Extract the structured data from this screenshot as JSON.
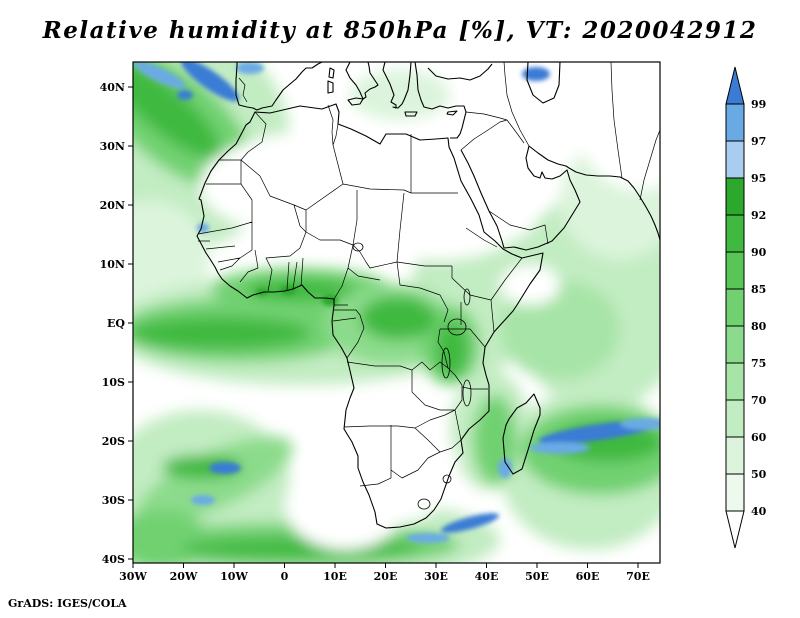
{
  "title": "Relative humidity at 850hPa [%], VT: 2020042912",
  "credit": "GrADS: IGES/COLA",
  "chart_data": {
    "type": "heatmap",
    "title": "Relative humidity at 850hPa [%], VT: 2020042912",
    "variable": "Relative humidity",
    "pressure_level": "850hPa",
    "units": "%",
    "valid_time": "2020042912",
    "region": "Africa and surrounding oceans",
    "lon_range": [
      -30,
      74
    ],
    "lat_range": [
      -41,
      44
    ],
    "x_ticks": [
      {
        "label": "30W",
        "lon": -30
      },
      {
        "label": "20W",
        "lon": -20
      },
      {
        "label": "10W",
        "lon": -10
      },
      {
        "label": "0",
        "lon": 0
      },
      {
        "label": "10E",
        "lon": 10
      },
      {
        "label": "20E",
        "lon": 20
      },
      {
        "label": "30E",
        "lon": 30
      },
      {
        "label": "40E",
        "lon": 40
      },
      {
        "label": "50E",
        "lon": 50
      },
      {
        "label": "60E",
        "lon": 60
      },
      {
        "label": "70E",
        "lon": 70
      }
    ],
    "y_ticks": [
      {
        "label": "40N",
        "lat": 40
      },
      {
        "label": "30N",
        "lat": 30
      },
      {
        "label": "20N",
        "lat": 20
      },
      {
        "label": "10N",
        "lat": 10
      },
      {
        "label": "EQ",
        "lat": 0
      },
      {
        "label": "10S",
        "lat": -10
      },
      {
        "label": "20S",
        "lat": -20
      },
      {
        "label": "30S",
        "lat": -30
      },
      {
        "label": "40S",
        "lat": -40
      }
    ],
    "colorbar": {
      "levels": [
        40,
        50,
        60,
        70,
        75,
        80,
        85,
        90,
        92,
        95,
        97,
        99
      ],
      "colors_low_to_high": [
        "#ffffff",
        "#eef9ee",
        "#dbf4db",
        "#c2ecc2",
        "#a7e4a7",
        "#8cdb8c",
        "#71d171",
        "#57c657",
        "#3fb93f",
        "#2ca82c",
        "#a9cdf0",
        "#6aaae4",
        "#3a7bd5"
      ]
    },
    "notable_features": [
      "Humid green band (RH 75-95%) along the equatorial Atlantic and Guinea coast",
      "Very dry (RH < 50%) Sahara and Arabian interior",
      "Dry interior of southern Africa (Namib/Kalahari, RH < 50%)",
      "Very high humidity (RH > 95%, blue) streaks off Iberia and in the eastern Mediterranean",
      "Blue band of RH > 95% east of Madagascar and south of South Africa",
      "Moist band across the Southern Ocean near 40S",
      "Green maxima over the Congo basin and East African lakes",
      "Moist air over the western Indian Ocean and Mozambique Channel"
    ]
  }
}
